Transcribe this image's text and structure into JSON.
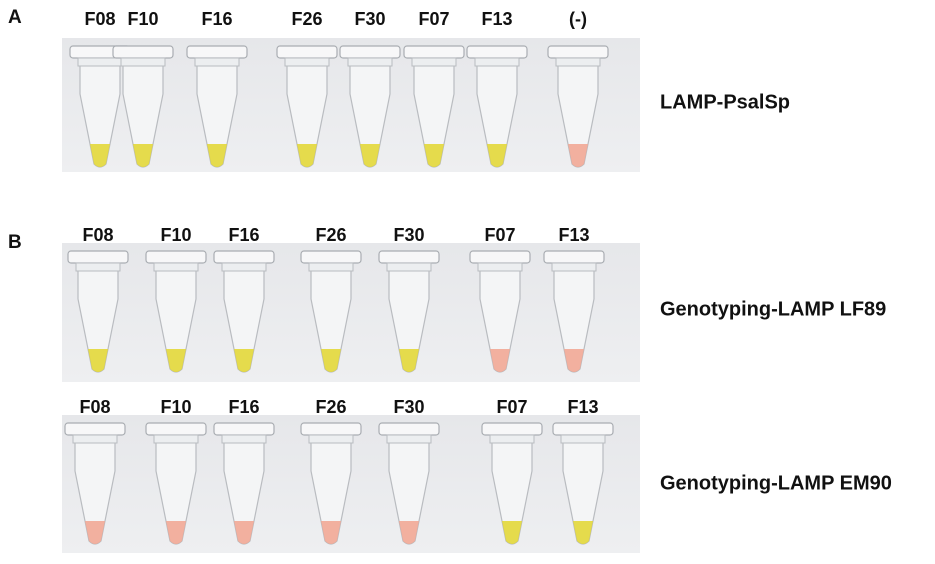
{
  "panels": [
    {
      "label": "A",
      "rows": [
        {
          "title": "LAMP-PsalSp",
          "tubes": [
            {
              "label": "F08",
              "color": "#e3d83a"
            },
            {
              "label": "F10",
              "color": "#e3d83a"
            },
            {
              "label": "F16",
              "color": "#e3d83a"
            },
            {
              "label": "F26",
              "color": "#e3d83a"
            },
            {
              "label": "F30",
              "color": "#e3d83a"
            },
            {
              "label": "F07",
              "color": "#e3d83a"
            },
            {
              "label": "F13",
              "color": "#e3d83a"
            },
            {
              "label": "(-)",
              "color": "#f2a896"
            }
          ]
        }
      ]
    },
    {
      "label": "B",
      "rows": [
        {
          "title": "Genotyping-LAMP LF89",
          "tubes": [
            {
              "label": "F08",
              "color": "#e3d83a"
            },
            {
              "label": "F10",
              "color": "#e3d83a"
            },
            {
              "label": "F16",
              "color": "#e3d83a"
            },
            {
              "label": "F26",
              "color": "#e3d83a"
            },
            {
              "label": "F30",
              "color": "#e3d83a"
            },
            {
              "label": "F07",
              "color": "#f2a896"
            },
            {
              "label": "F13",
              "color": "#f2a896"
            }
          ]
        },
        {
          "title": "Genotyping-LAMP EM90",
          "tubes": [
            {
              "label": "F08",
              "color": "#f2a896"
            },
            {
              "label": "F10",
              "color": "#f2a896"
            },
            {
              "label": "F16",
              "color": "#f2a896"
            },
            {
              "label": "F26",
              "color": "#f2a896"
            },
            {
              "label": "F30",
              "color": "#f2a896"
            },
            {
              "label": "F07",
              "color": "#e3d83a"
            },
            {
              "label": "F13",
              "color": "#e3d83a"
            }
          ]
        }
      ]
    }
  ]
}
